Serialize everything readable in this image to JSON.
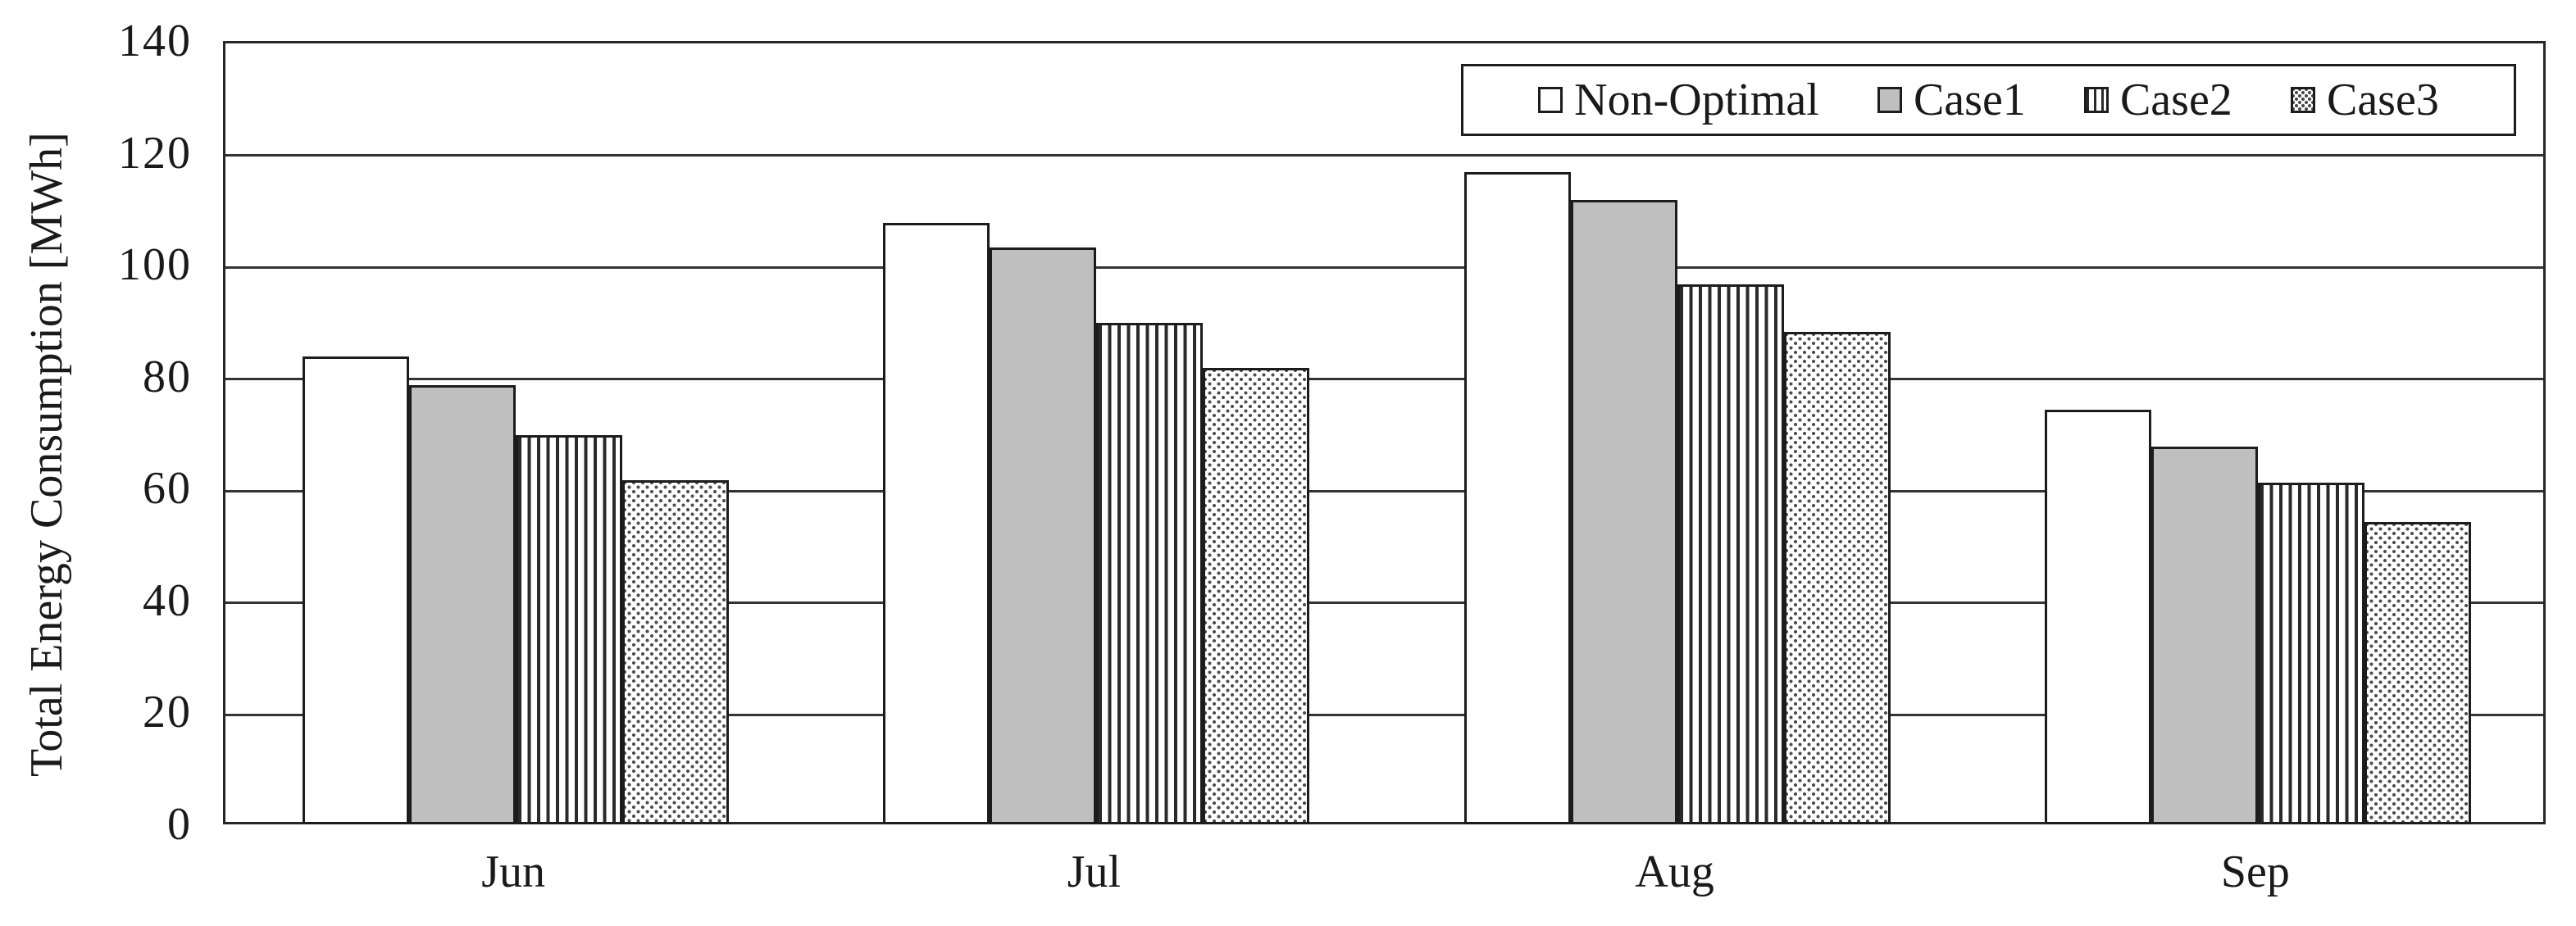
{
  "chart_data": {
    "type": "bar",
    "title": "",
    "xlabel": "",
    "ylabel": "Total Energy Consumption [MWh]",
    "ylim": [
      0,
      140
    ],
    "ytick_step": 20,
    "yticks": [
      0,
      20,
      40,
      60,
      80,
      100,
      120,
      140
    ],
    "categories": [
      "Jun",
      "Jul",
      "Aug",
      "Sep"
    ],
    "series": [
      {
        "name": "Non-Optimal",
        "pattern": "white",
        "values": [
          84,
          108,
          117,
          74.5
        ]
      },
      {
        "name": "Case1",
        "pattern": "gray",
        "values": [
          79,
          103.5,
          112,
          68
        ]
      },
      {
        "name": "Case2",
        "pattern": "vstripes",
        "values": [
          70,
          90,
          97,
          61.5
        ]
      },
      {
        "name": "Case3",
        "pattern": "dots",
        "values": [
          62,
          82,
          88.5,
          54.5
        ]
      }
    ],
    "legend_position": "top-right",
    "grid": "horizontal-only",
    "colors": {
      "background": "#ffffff",
      "line": "#1c1c1c",
      "gridline": "#333333",
      "gray_fill": "#bfbfbf"
    }
  }
}
